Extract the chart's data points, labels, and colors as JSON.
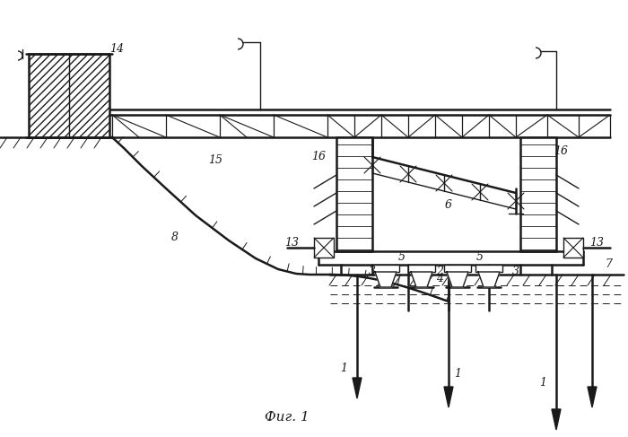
{
  "bg": "#ffffff",
  "lc": "#1a1a1a",
  "figsize": [
    7.0,
    4.87
  ],
  "dpi": 100,
  "caption": "Фиг. 1",
  "lw": 1.0,
  "lw2": 1.8
}
